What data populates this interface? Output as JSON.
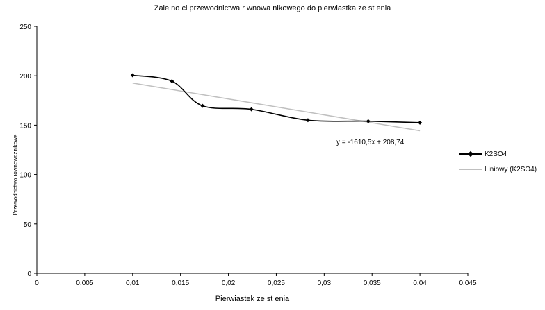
{
  "chart_data": {
    "type": "line",
    "title": "Zale no ci przewodnictwa r wnowa nikowego do pierwiastka ze st enia",
    "xlabel": "Pierwiastek ze st enia",
    "ylabel": "Przewodnictwo równoważnikowe",
    "xlim": [
      0,
      0.045
    ],
    "ylim": [
      0,
      250
    ],
    "x_ticks": [
      "0",
      "0,005",
      "0,01",
      "0,015",
      "0,02",
      "0,025",
      "0,03",
      "0,035",
      "0,04",
      "0,045"
    ],
    "y_ticks": [
      "0",
      "50",
      "100",
      "150",
      "200",
      "250"
    ],
    "grid": false,
    "legend_position": "right",
    "series": [
      {
        "name": "K2SO4",
        "color": "#000000",
        "marker": "diamond",
        "smooth": true,
        "x": [
          0.01,
          0.0141,
          0.0173,
          0.0224,
          0.0283,
          0.0346,
          0.04
        ],
        "y": [
          200.5,
          194.5,
          169.5,
          166.0,
          155.0,
          154.0,
          152.5
        ]
      },
      {
        "name": "Liniowy (K2SO4)",
        "color": "#bfbfbf",
        "type": "trendline",
        "slope": -1610.5,
        "intercept": 208.74,
        "x": [
          0.01,
          0.04
        ],
        "y": [
          192.6,
          144.3
        ]
      }
    ],
    "annotations": [
      {
        "text": "y = -1610,5x + 208,74"
      }
    ]
  }
}
